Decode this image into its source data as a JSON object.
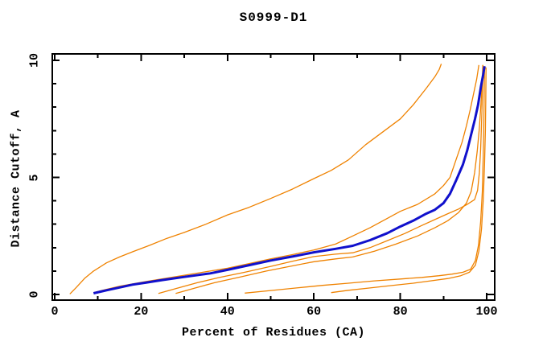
{
  "chart_data": {
    "type": "line",
    "title": "S0999-D1",
    "xlabel": "Percent of Residues (CA)",
    "ylabel": "Distance Cutoff, A",
    "xlim": [
      0,
      100
    ],
    "ylim": [
      0,
      10
    ],
    "grid": false,
    "legend": "none",
    "axis_color": "#000000",
    "background": "#ffffff",
    "x_major_ticks": [
      0,
      20,
      40,
      60,
      80,
      100
    ],
    "x_minor_ticks": [
      10,
      30,
      50,
      70,
      90
    ],
    "x_tick_labels": [
      "0",
      "20",
      "40",
      "60",
      "80",
      "100"
    ],
    "y_major_ticks": [
      0,
      5,
      10
    ],
    "y_minor_ticks": [
      1,
      2,
      3,
      4,
      6,
      7,
      8,
      9
    ],
    "y_tick_labels": [
      "0",
      "5",
      "10"
    ],
    "series": [
      {
        "name": "blue-model-curve",
        "color": "#1010cc",
        "width": 3,
        "points": [
          [
            9,
            0.05
          ],
          [
            12,
            0.18
          ],
          [
            15,
            0.3
          ],
          [
            18,
            0.42
          ],
          [
            21,
            0.5
          ],
          [
            25,
            0.62
          ],
          [
            30,
            0.75
          ],
          [
            36,
            0.9
          ],
          [
            40,
            1.05
          ],
          [
            45,
            1.25
          ],
          [
            50,
            1.45
          ],
          [
            55,
            1.62
          ],
          [
            60,
            1.8
          ],
          [
            65,
            1.95
          ],
          [
            69,
            2.08
          ],
          [
            73,
            2.32
          ],
          [
            77,
            2.62
          ],
          [
            80,
            2.9
          ],
          [
            83,
            3.15
          ],
          [
            86,
            3.45
          ],
          [
            88,
            3.62
          ],
          [
            90,
            3.9
          ],
          [
            91.5,
            4.3
          ],
          [
            93,
            4.9
          ],
          [
            94.5,
            5.55
          ],
          [
            95.5,
            6.15
          ],
          [
            96.5,
            6.9
          ],
          [
            97.3,
            7.5
          ],
          [
            98,
            8.1
          ],
          [
            98.7,
            8.9
          ],
          [
            99.2,
            9.4
          ],
          [
            99.5,
            9.75
          ]
        ]
      },
      {
        "name": "orange-curve-1",
        "color": "#ef8200",
        "width": 1.3,
        "points": [
          [
            3.5,
            0.02
          ],
          [
            5,
            0.3
          ],
          [
            7,
            0.7
          ],
          [
            9,
            1.0
          ],
          [
            12,
            1.35
          ],
          [
            15,
            1.6
          ],
          [
            18,
            1.82
          ],
          [
            22,
            2.1
          ],
          [
            26,
            2.4
          ],
          [
            30,
            2.65
          ],
          [
            35,
            3.0
          ],
          [
            40,
            3.4
          ],
          [
            45,
            3.72
          ],
          [
            50,
            4.1
          ],
          [
            55,
            4.5
          ],
          [
            60,
            4.95
          ],
          [
            64,
            5.3
          ],
          [
            68,
            5.75
          ],
          [
            72,
            6.4
          ],
          [
            76,
            6.95
          ],
          [
            80,
            7.5
          ],
          [
            83,
            8.1
          ],
          [
            86,
            8.8
          ],
          [
            88,
            9.3
          ],
          [
            89,
            9.6
          ],
          [
            89.5,
            9.85
          ]
        ]
      },
      {
        "name": "orange-curve-2",
        "color": "#ef8200",
        "width": 1.3,
        "points": [
          [
            9,
            0.08
          ],
          [
            12,
            0.22
          ],
          [
            15,
            0.35
          ],
          [
            21,
            0.55
          ],
          [
            30,
            0.82
          ],
          [
            40,
            1.12
          ],
          [
            45,
            1.32
          ],
          [
            50,
            1.52
          ],
          [
            55,
            1.7
          ],
          [
            60,
            1.9
          ],
          [
            65,
            2.15
          ],
          [
            69,
            2.5
          ],
          [
            73,
            2.85
          ],
          [
            77,
            3.25
          ],
          [
            80,
            3.55
          ],
          [
            84,
            3.85
          ],
          [
            88,
            4.3
          ],
          [
            90,
            4.65
          ],
          [
            91.5,
            5.0
          ],
          [
            93,
            5.8
          ],
          [
            94.3,
            6.5
          ],
          [
            95.3,
            7.2
          ],
          [
            96.2,
            7.9
          ],
          [
            97,
            8.6
          ],
          [
            97.7,
            9.2
          ],
          [
            98.2,
            9.8
          ]
        ]
      },
      {
        "name": "orange-curve-3",
        "color": "#ef8200",
        "width": 1.3,
        "points": [
          [
            24,
            0.04
          ],
          [
            28,
            0.25
          ],
          [
            33,
            0.5
          ],
          [
            38,
            0.72
          ],
          [
            44,
            0.95
          ],
          [
            50,
            1.2
          ],
          [
            55,
            1.42
          ],
          [
            60,
            1.62
          ],
          [
            65,
            1.72
          ],
          [
            69,
            1.78
          ],
          [
            73,
            2.0
          ],
          [
            77,
            2.3
          ],
          [
            81,
            2.6
          ],
          [
            85,
            2.95
          ],
          [
            88,
            3.2
          ],
          [
            91,
            3.45
          ],
          [
            93.5,
            3.65
          ],
          [
            95.5,
            3.85
          ],
          [
            97.2,
            4.05
          ],
          [
            97.9,
            4.45
          ],
          [
            98.3,
            5.2
          ],
          [
            98.6,
            6.2
          ],
          [
            98.8,
            7.3
          ],
          [
            99,
            8.4
          ],
          [
            99.1,
            9.3
          ],
          [
            99.15,
            9.8
          ]
        ]
      },
      {
        "name": "orange-curve-4",
        "color": "#ef8200",
        "width": 1.3,
        "points": [
          [
            28,
            0.04
          ],
          [
            32,
            0.25
          ],
          [
            37,
            0.5
          ],
          [
            43,
            0.75
          ],
          [
            49,
            1.0
          ],
          [
            55,
            1.22
          ],
          [
            60,
            1.4
          ],
          [
            65,
            1.52
          ],
          [
            69,
            1.6
          ],
          [
            74,
            1.85
          ],
          [
            79,
            2.15
          ],
          [
            84,
            2.5
          ],
          [
            88,
            2.85
          ],
          [
            91,
            3.15
          ],
          [
            93.5,
            3.5
          ],
          [
            95.3,
            3.9
          ],
          [
            96.4,
            4.4
          ],
          [
            97.2,
            5.2
          ],
          [
            97.8,
            6.1
          ],
          [
            98.3,
            7.1
          ],
          [
            98.7,
            8.2
          ],
          [
            99,
            9.1
          ],
          [
            99.1,
            9.8
          ]
        ]
      },
      {
        "name": "orange-curve-5",
        "color": "#ef8200",
        "width": 1.3,
        "points": [
          [
            44,
            0.06
          ],
          [
            50,
            0.17
          ],
          [
            56,
            0.28
          ],
          [
            62,
            0.39
          ],
          [
            68,
            0.48
          ],
          [
            74,
            0.58
          ],
          [
            80,
            0.66
          ],
          [
            85,
            0.73
          ],
          [
            89,
            0.8
          ],
          [
            92,
            0.87
          ],
          [
            94.5,
            0.95
          ],
          [
            96.3,
            1.08
          ],
          [
            97.4,
            1.45
          ],
          [
            98.1,
            2.1
          ],
          [
            98.6,
            3.1
          ],
          [
            99,
            4.4
          ],
          [
            99.2,
            5.9
          ],
          [
            99.35,
            7.4
          ],
          [
            99.45,
            8.7
          ],
          [
            99.5,
            9.75
          ]
        ]
      },
      {
        "name": "orange-curve-6",
        "color": "#ef8200",
        "width": 1.3,
        "points": [
          [
            64,
            0.08
          ],
          [
            68,
            0.18
          ],
          [
            73,
            0.28
          ],
          [
            78,
            0.38
          ],
          [
            83,
            0.48
          ],
          [
            87,
            0.58
          ],
          [
            91,
            0.68
          ],
          [
            94,
            0.8
          ],
          [
            96,
            0.95
          ],
          [
            97.4,
            1.25
          ],
          [
            98.2,
            1.85
          ],
          [
            98.8,
            2.8
          ],
          [
            99.2,
            4.0
          ],
          [
            99.5,
            5.5
          ],
          [
            99.7,
            7.0
          ],
          [
            99.8,
            8.4
          ],
          [
            99.85,
            9.7
          ]
        ]
      }
    ]
  }
}
